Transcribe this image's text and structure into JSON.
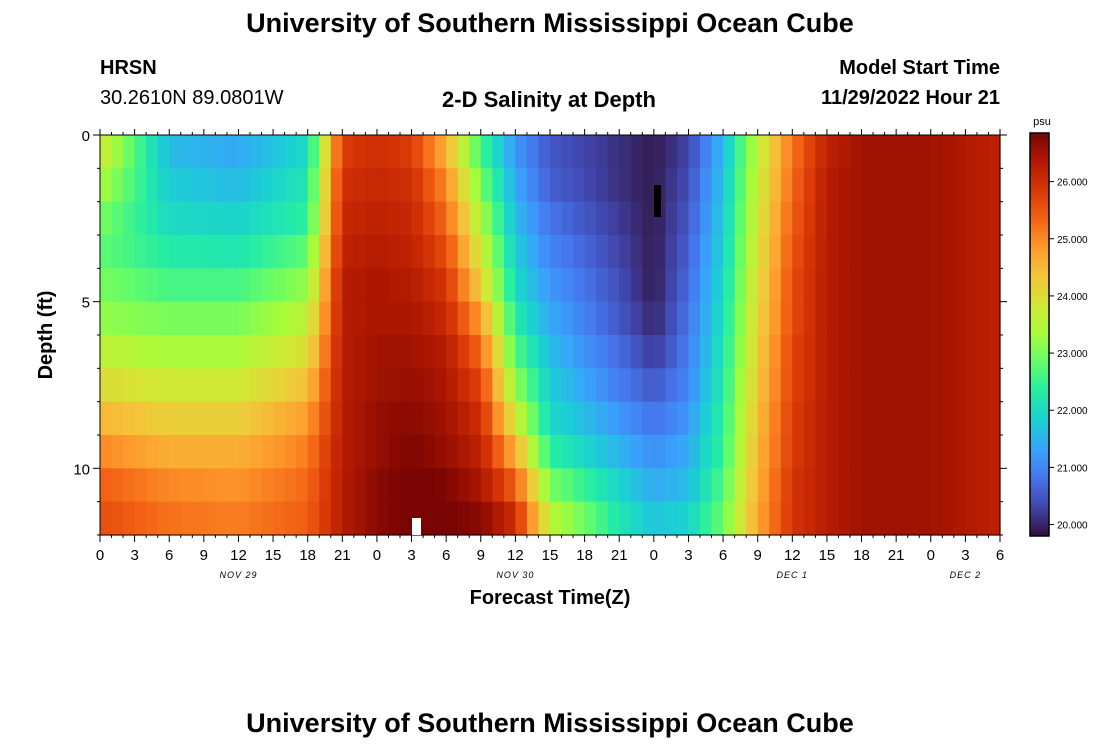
{
  "page": {
    "title": "University of Southern Mississippi Ocean Cube",
    "footer_title": "University of Southern Mississippi Ocean Cube"
  },
  "station": {
    "code": "HRSN",
    "coords": "30.2610N  89.0801W"
  },
  "plot": {
    "heading": "2-D Salinity at Depth",
    "model_label": "Model Start Time",
    "model_time": "11/29/2022 Hour 21"
  },
  "colorbar": {
    "unit": "psu",
    "ticks": [
      "26.000",
      "25.000",
      "24.000",
      "23.000",
      "22.000",
      "21.000",
      "20.000"
    ],
    "min": 19.8,
    "max": 26.85,
    "colors": [
      "#30123b",
      "#4145ab",
      "#4675ed",
      "#39a2fc",
      "#1bcfd4",
      "#24eca6",
      "#61fc6c",
      "#a4fc3b",
      "#d1e834",
      "#f3c63a",
      "#fe9b2d",
      "#f36315",
      "#d93806",
      "#b11901",
      "#7a0403"
    ]
  },
  "chart_data": {
    "type": "heatmap",
    "title": "2-D Salinity at Depth",
    "xlabel": "Forecast Time(Z)",
    "ylabel": "Depth (ft)",
    "x_tick_labels": [
      "0",
      "3",
      "6",
      "9",
      "12",
      "15",
      "18",
      "21",
      "0",
      "3",
      "6",
      "9",
      "12",
      "15",
      "18",
      "21",
      "0",
      "3",
      "6",
      "9",
      "12",
      "15",
      "18",
      "21",
      "0",
      "3",
      "6"
    ],
    "date_labels": [
      {
        "label": "NOV 29",
        "hour": 12
      },
      {
        "label": "NOV 30",
        "hour": 36
      },
      {
        "label": "DEC 1",
        "hour": 60
      },
      {
        "label": "DEC 2",
        "hour": 75
      }
    ],
    "xlim": [
      0,
      78
    ],
    "ylim": [
      0,
      12
    ],
    "y_tick_labels": [
      "0",
      "5",
      "10"
    ],
    "y_ticks": [
      0,
      5,
      10
    ],
    "depths_ft": [
      0.5,
      1.5,
      2.5,
      3.5,
      4.5,
      5.5,
      6.5,
      7.5,
      8.5,
      9.5,
      10.5,
      11.5
    ],
    "time_hours": [
      0,
      6,
      12,
      18,
      21,
      24,
      27,
      30,
      33,
      36,
      39,
      45,
      48,
      51,
      54,
      57,
      60,
      63,
      66,
      72,
      78
    ],
    "values": [
      [
        23.8,
        21.6,
        21.4,
        22.0,
        25.8,
        26.0,
        25.8,
        24.6,
        22.6,
        21.2,
        20.5,
        20.1,
        19.9,
        20.3,
        21.6,
        23.6,
        25.2,
        26.2,
        26.5,
        26.5,
        26.2
      ],
      [
        23.4,
        21.8,
        21.6,
        22.2,
        26.0,
        26.1,
        26.0,
        25.0,
        23.0,
        21.4,
        20.6,
        20.1,
        19.9,
        20.4,
        21.7,
        23.7,
        25.3,
        26.3,
        26.5,
        26.5,
        26.2
      ],
      [
        23.0,
        22.0,
        21.9,
        22.4,
        26.1,
        26.2,
        26.1,
        25.3,
        23.4,
        21.6,
        20.8,
        20.2,
        19.9,
        20.5,
        21.8,
        23.8,
        25.4,
        26.3,
        26.5,
        26.5,
        26.2
      ],
      [
        22.8,
        22.3,
        22.2,
        22.8,
        26.2,
        26.3,
        26.2,
        25.6,
        23.8,
        21.8,
        21.0,
        20.3,
        19.9,
        20.6,
        21.9,
        23.9,
        25.5,
        26.3,
        26.5,
        26.5,
        26.2
      ],
      [
        23.0,
        22.6,
        22.6,
        23.2,
        26.3,
        26.4,
        26.3,
        25.9,
        24.2,
        22.0,
        21.2,
        20.4,
        19.9,
        20.7,
        22.0,
        24.0,
        25.6,
        26.3,
        26.5,
        26.5,
        26.2
      ],
      [
        23.2,
        23.0,
        23.0,
        23.6,
        26.3,
        26.4,
        26.4,
        26.1,
        24.8,
        22.3,
        21.4,
        20.5,
        20.0,
        20.8,
        22.1,
        24.1,
        25.6,
        26.3,
        26.5,
        26.5,
        26.2
      ],
      [
        23.6,
        23.4,
        23.4,
        24.0,
        26.3,
        26.5,
        26.5,
        26.3,
        25.3,
        22.7,
        21.6,
        20.7,
        20.2,
        20.9,
        22.2,
        24.2,
        25.7,
        26.3,
        26.5,
        26.5,
        26.2
      ],
      [
        24.0,
        23.8,
        23.8,
        24.4,
        26.3,
        26.5,
        26.6,
        26.4,
        25.7,
        23.2,
        21.8,
        20.9,
        20.5,
        21.0,
        22.3,
        24.3,
        25.7,
        26.3,
        26.5,
        26.5,
        26.2
      ],
      [
        24.5,
        24.2,
        24.2,
        24.8,
        26.3,
        26.6,
        26.7,
        26.5,
        26.0,
        23.8,
        22.0,
        21.2,
        20.8,
        21.2,
        22.4,
        24.4,
        25.8,
        26.3,
        26.5,
        26.5,
        26.2
      ],
      [
        25.0,
        24.6,
        24.6,
        25.1,
        26.3,
        26.6,
        26.8,
        26.6,
        26.2,
        24.6,
        22.4,
        21.5,
        21.1,
        21.4,
        22.5,
        24.5,
        25.8,
        26.3,
        26.5,
        26.5,
        26.2
      ],
      [
        25.4,
        25.0,
        24.9,
        25.3,
        26.3,
        26.7,
        26.9,
        26.8,
        26.4,
        25.4,
        23.0,
        21.9,
        21.4,
        21.6,
        22.7,
        24.6,
        25.9,
        26.3,
        26.5,
        26.5,
        26.2
      ],
      [
        25.6,
        25.2,
        25.1,
        25.4,
        26.3,
        26.7,
        26.9,
        26.9,
        26.7,
        26.0,
        23.6,
        22.2,
        21.7,
        21.9,
        22.9,
        24.7,
        25.9,
        26.3,
        26.5,
        26.5,
        26.2
      ]
    ]
  }
}
